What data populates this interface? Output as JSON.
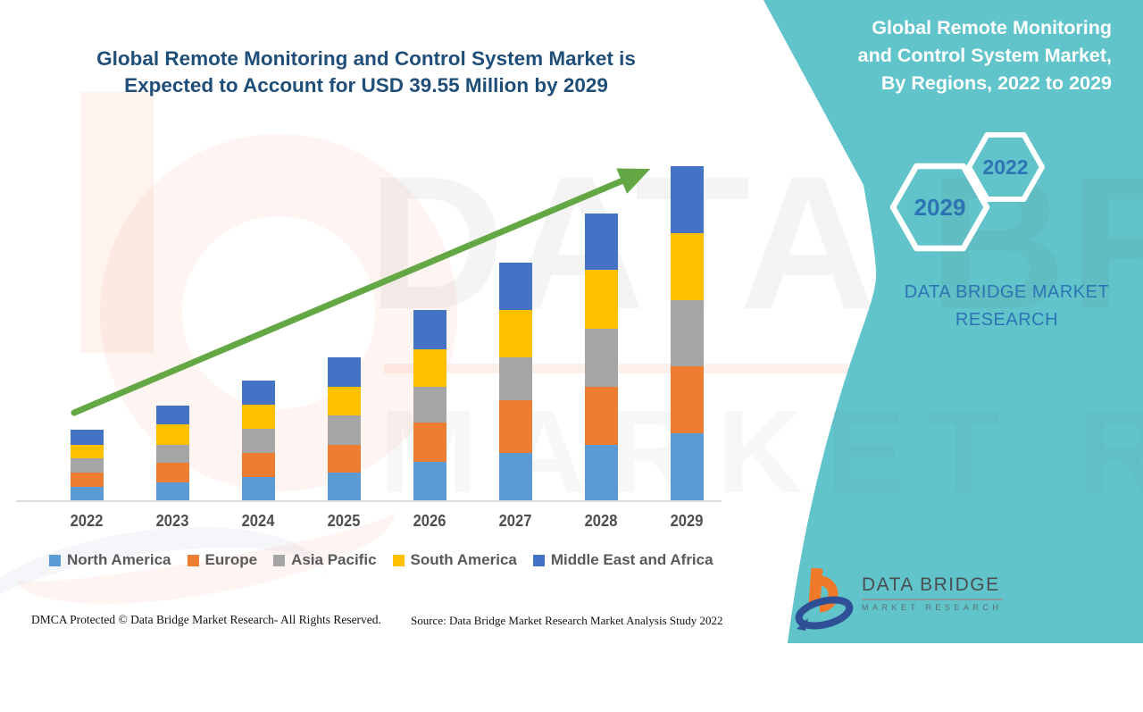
{
  "title": {
    "line1": "Global Remote Monitoring and Control System Market is",
    "line2": "Expected to Account for USD 39.55 Million by 2029"
  },
  "side_panel": {
    "heading_line1": "Global Remote Monitoring",
    "heading_line2": "and Control System Market,",
    "heading_line3": "By Regions, 2022 to 2029",
    "hexagon_large_label": "2029",
    "hexagon_small_label": "2022",
    "brand_line1": "DATA BRIDGE MARKET",
    "brand_line2": "RESEARCH"
  },
  "chart_data": {
    "type": "bar",
    "stacked": true,
    "title": "Global Remote Monitoring and Control System Market is Expected to Account for USD 39.55 Million by 2029",
    "unit": "USD Million",
    "categories": [
      "2022",
      "2023",
      "2024",
      "2025",
      "2026",
      "2027",
      "2028",
      "2029"
    ],
    "series": [
      {
        "name": "North America",
        "color": "#5B9BD5",
        "values": [
          1.7,
          2.2,
          2.9,
          3.4,
          4.6,
          5.7,
          6.6,
          8.0
        ]
      },
      {
        "name": "Europe",
        "color": "#ED7D31",
        "values": [
          1.7,
          2.3,
          2.8,
          3.3,
          4.7,
          6.2,
          6.9,
          7.9
        ]
      },
      {
        "name": "Asia Pacific",
        "color": "#A5A5A5",
        "values": [
          1.7,
          2.1,
          2.9,
          3.4,
          4.2,
          5.1,
          6.9,
          7.8
        ]
      },
      {
        "name": "South America",
        "color": "#FFC000",
        "values": [
          1.6,
          2.5,
          2.8,
          3.4,
          4.4,
          5.6,
          6.9,
          8.0
        ]
      },
      {
        "name": "Middle East and Africa",
        "color": "#4472C4",
        "values": [
          1.7,
          2.2,
          2.8,
          3.5,
          4.7,
          5.6,
          6.7,
          7.9
        ]
      }
    ],
    "totals": [
      8.4,
      11.3,
      14.2,
      17.0,
      22.6,
      28.2,
      34.0,
      39.6
    ],
    "ylim": [
      0,
      40
    ],
    "xlabel": "",
    "ylabel": "",
    "gridlines": false,
    "legend_position": "bottom",
    "trend_arrow": true
  },
  "footer": {
    "left": "DMCA Protected © Data Bridge Market Research- All Rights Reserved.",
    "right": "Source: Data Bridge Market Research Market Analysis Study 2022"
  },
  "logo": {
    "name": "DATA BRIDGE",
    "subtitle": "MARKET RESEARCH"
  },
  "watermark": {
    "line1": "DATA BRIDGE",
    "line2": "MARKET RESEARCH"
  },
  "colors": {
    "teal": "#60C4CA",
    "title_navy": "#1F4E79",
    "accent_blue": "#2E74B5",
    "arrow_green": "#64A845",
    "axis_gray": "#DCDCDC",
    "label_gray": "#595959"
  }
}
